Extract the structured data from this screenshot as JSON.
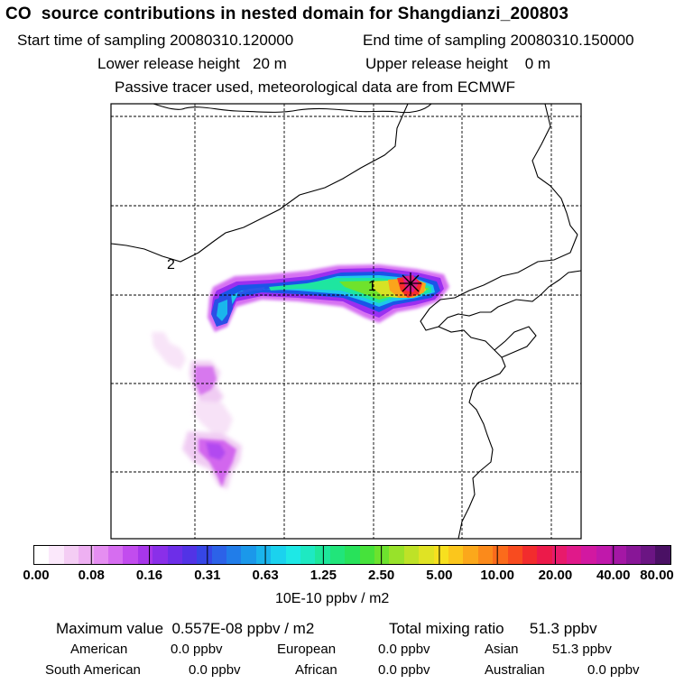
{
  "header": {
    "title": "CO  source contributions in nested domain for Shangdianzi_200803",
    "start_time": "Start time of sampling 20080310.120000",
    "end_time": "End time of sampling 20080310.150000",
    "lower_release": "Lower release height   20 m",
    "upper_release": "Upper release height    0 m",
    "note": "Passive tracer used, meteorological data are from ECMWF"
  },
  "map": {
    "labels": [
      {
        "text": "1",
        "name": "map-label-1"
      },
      {
        "text": "2",
        "name": "map-label-2"
      }
    ],
    "receptor_marker": "star-marker-icon"
  },
  "legend": {
    "ticks": [
      "0.00",
      "0.08",
      "0.16",
      "0.31",
      "0.63",
      "1.25",
      "2.50",
      "5.00",
      "10.00",
      "20.00",
      "40.00",
      "80.00"
    ],
    "units": "10E-10 ppbv / m2",
    "colors": [
      "#ffffff",
      "#fbe8fb",
      "#f4cdf4",
      "#eeb0f2",
      "#e58ef1",
      "#d66df0",
      "#c24cee",
      "#a836ea",
      "#8a2fe9",
      "#6d2ee8",
      "#5233e6",
      "#3646e6",
      "#2c62e8",
      "#217de9",
      "#1b98ea",
      "#1ab4ec",
      "#1bd2ee",
      "#1ee8e6",
      "#1ee9c2",
      "#1ee79b",
      "#21e57a",
      "#28e25a",
      "#46e23b",
      "#6de22e",
      "#98e22a",
      "#bee227",
      "#e0e324",
      "#f7e01f",
      "#fbc61c",
      "#fba81b",
      "#fb8a1b",
      "#fb6b1b",
      "#f84b1f",
      "#f22c2d",
      "#ec1a4a",
      "#e81a6b",
      "#e0198a",
      "#d218a1",
      "#c018ab",
      "#a417a5",
      "#881697",
      "#6b1583",
      "#4a1064"
    ]
  },
  "stats": {
    "max_value": "Maximum value  0.557E-08 ppbv / m2",
    "total_mixing": "Total mixing ratio      51.3 ppbv",
    "regions": [
      {
        "label": "American",
        "value": "0.0 ppbv"
      },
      {
        "label": "European",
        "value": "0.0 ppbv"
      },
      {
        "label": "Asian",
        "value": "51.3 ppbv"
      },
      {
        "label": "South American",
        "value": "0.0 ppbv"
      },
      {
        "label": "African",
        "value": "0.0 ppbv"
      },
      {
        "label": "Australian",
        "value": "0.0 ppbv"
      }
    ]
  }
}
